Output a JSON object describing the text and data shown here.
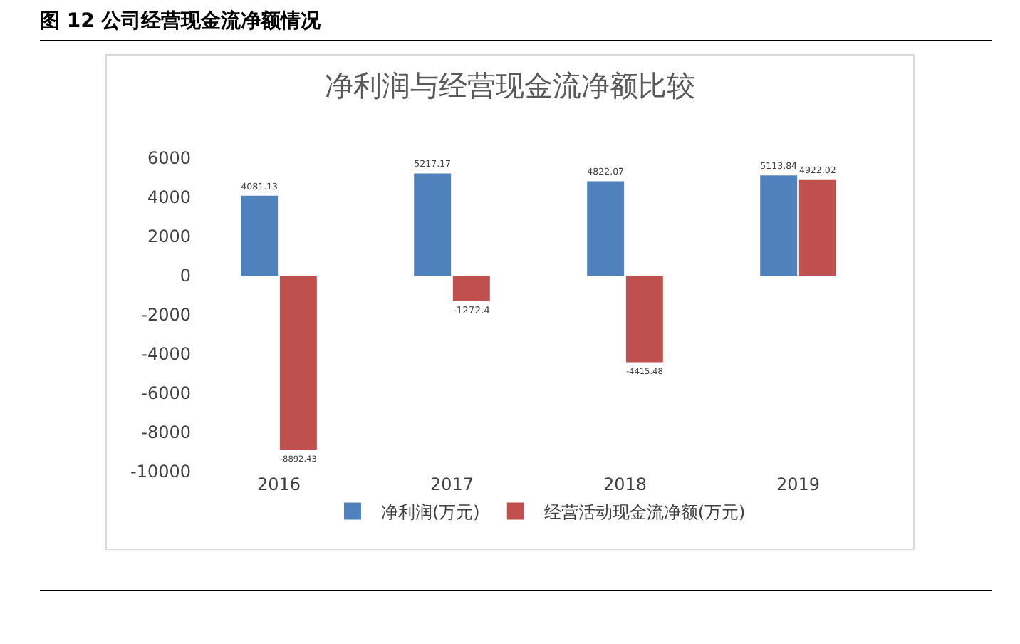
{
  "chart_data": {
    "type": "bar",
    "title": "图 12 公司经营现金流净额情况",
    "subtitle": "净利润与经营现金流净额比较",
    "categories": [
      "2016",
      "2017",
      "2018",
      "2019"
    ],
    "series": [
      {
        "name": "净利润(万元)",
        "color": "#4f81bd",
        "values": [
          4081.13,
          5217.17,
          4822.07,
          5113.84
        ]
      },
      {
        "name": "经营活动现金流净额(万元)",
        "color": "#c0504d",
        "values": [
          -8892.43,
          -1272.4,
          -4415.48,
          4922.02
        ]
      }
    ],
    "ylim": [
      -10000,
      6000
    ],
    "yticks": [
      -10000,
      -8000,
      -6000,
      -4000,
      -2000,
      0,
      2000,
      4000,
      6000
    ],
    "data_labels": true,
    "grid": false,
    "legend": "bottom"
  }
}
